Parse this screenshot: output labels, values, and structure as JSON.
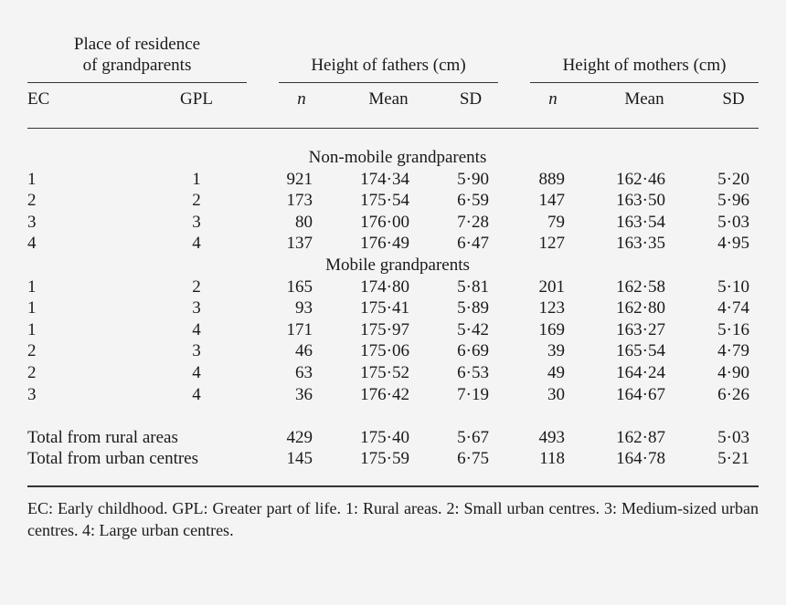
{
  "table": {
    "group_headers": {
      "residence": [
        "Place of residence",
        "of grandparents"
      ],
      "fathers": "Height of fathers (cm)",
      "mothers": "Height of mothers (cm)"
    },
    "columns": [
      "EC",
      "GPL",
      "n",
      "Mean",
      "SD",
      "n",
      "Mean",
      "SD"
    ],
    "sections": [
      {
        "title": "Non-mobile grandparents",
        "rows": [
          [
            "1",
            "1",
            "921",
            "174·34",
            "5·90",
            "889",
            "162·46",
            "5·20"
          ],
          [
            "2",
            "2",
            "173",
            "175·54",
            "6·59",
            "147",
            "163·50",
            "5·96"
          ],
          [
            "3",
            "3",
            "80",
            "176·00",
            "7·28",
            "79",
            "163·54",
            "5·03"
          ],
          [
            "4",
            "4",
            "137",
            "176·49",
            "6·47",
            "127",
            "163·35",
            "4·95"
          ]
        ]
      },
      {
        "title": "Mobile grandparents",
        "rows": [
          [
            "1",
            "2",
            "165",
            "174·80",
            "5·81",
            "201",
            "162·58",
            "5·10"
          ],
          [
            "1",
            "3",
            "93",
            "175·41",
            "5·89",
            "123",
            "162·80",
            "4·74"
          ],
          [
            "1",
            "4",
            "171",
            "175·97",
            "5·42",
            "169",
            "163·27",
            "5·16"
          ],
          [
            "2",
            "3",
            "46",
            "175·06",
            "6·69",
            "39",
            "165·54",
            "4·79"
          ],
          [
            "2",
            "4",
            "63",
            "175·52",
            "6·53",
            "49",
            "164·24",
            "4·90"
          ],
          [
            "3",
            "4",
            "36",
            "176·42",
            "7·19",
            "30",
            "164·67",
            "6·26"
          ]
        ]
      }
    ],
    "totals": [
      [
        "Total from rural areas",
        "429",
        "175·40",
        "5·67",
        "493",
        "162·87",
        "5·03"
      ],
      [
        "Total from urban centres",
        "145",
        "175·59",
        "6·75",
        "118",
        "164·78",
        "5·21"
      ]
    ]
  },
  "footnote": "EC: Early childhood. GPL: Greater part of life. 1: Rural areas. 2: Small urban centres. 3: Medium-sized urban centres. 4: Large urban centres."
}
